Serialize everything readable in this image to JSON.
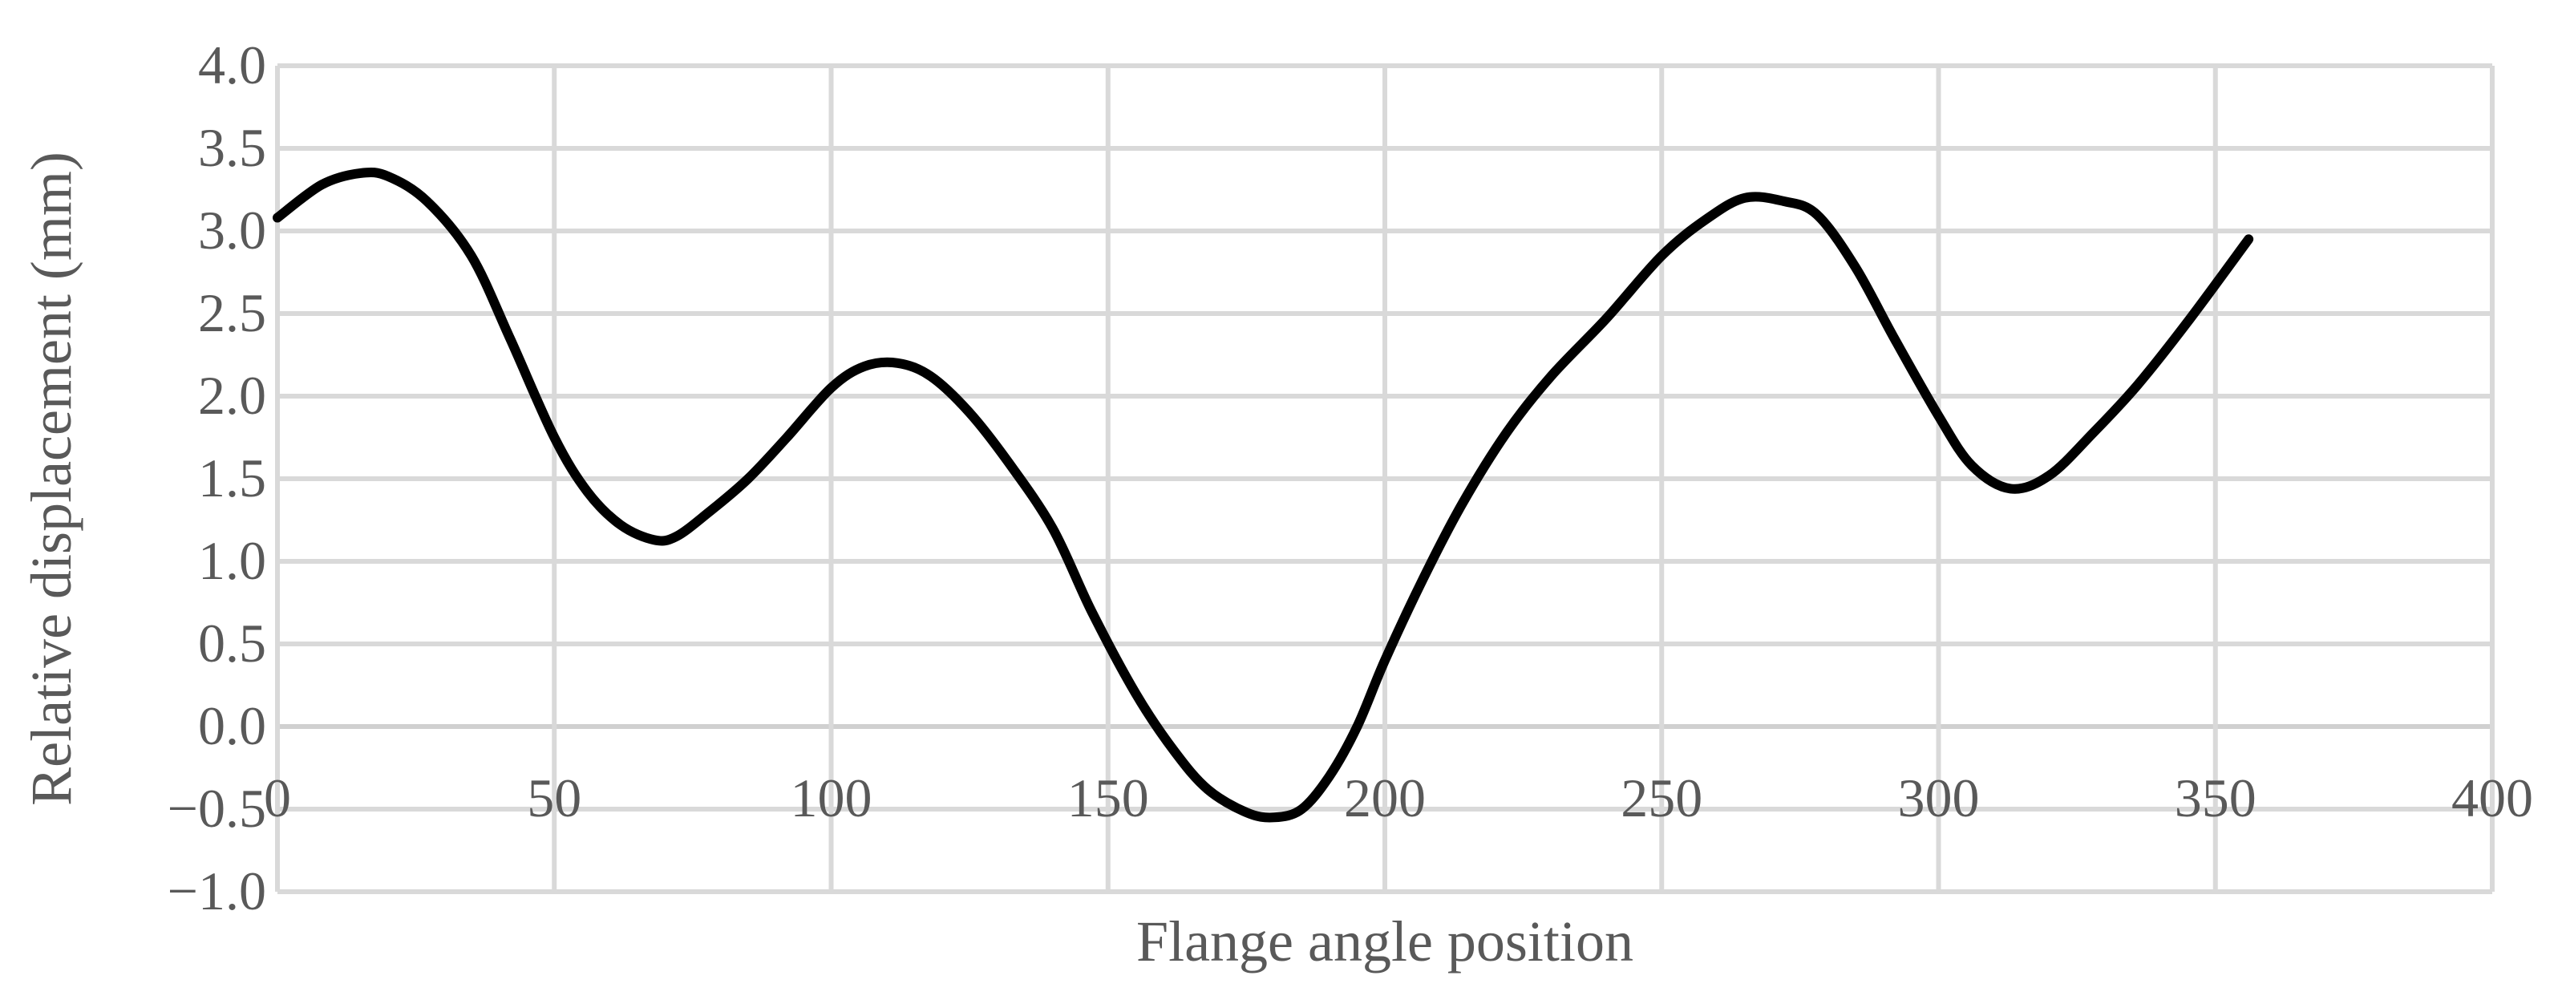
{
  "chart_data": {
    "type": "line",
    "title": "",
    "xlabel": "Flange angle position",
    "ylabel": "Relative displacement (mm)",
    "xlim": [
      0,
      400
    ],
    "ylim": [
      -1.0,
      4.0
    ],
    "x_ticks": [
      "0",
      "50",
      "100",
      "150",
      "200",
      "250",
      "300",
      "350",
      "400"
    ],
    "y_ticks": [
      "4.0",
      "3.5",
      "3.0",
      "2.5",
      "2.0",
      "1.5",
      "1.0",
      "0.5",
      "0.0",
      "−0.5",
      "−1.0"
    ],
    "grid": true,
    "legend": "none",
    "series": [
      {
        "color": "#000000",
        "x": [
          0,
          8,
          15,
          20,
          27,
          35,
          42,
          50,
          56,
          62,
          68,
          72,
          78,
          85,
          92,
          100,
          106,
          112,
          118,
          125,
          132,
          140,
          147,
          155,
          162,
          168,
          175,
          180,
          185,
          190,
          195,
          200,
          207,
          214,
          222,
          230,
          240,
          250,
          258,
          265,
          272,
          278,
          285,
          292,
          300,
          306,
          313,
          320,
          328,
          336,
          345,
          356
        ],
        "y": [
          3.08,
          3.28,
          3.35,
          3.33,
          3.18,
          2.85,
          2.35,
          1.75,
          1.42,
          1.22,
          1.13,
          1.15,
          1.3,
          1.5,
          1.75,
          2.05,
          2.18,
          2.2,
          2.12,
          1.9,
          1.6,
          1.2,
          0.7,
          0.2,
          -0.15,
          -0.38,
          -0.52,
          -0.55,
          -0.5,
          -0.3,
          0.0,
          0.4,
          0.9,
          1.35,
          1.78,
          2.12,
          2.47,
          2.85,
          3.07,
          3.2,
          3.18,
          3.1,
          2.78,
          2.35,
          1.88,
          1.58,
          1.44,
          1.52,
          1.78,
          2.07,
          2.45,
          2.95
        ]
      }
    ]
  }
}
